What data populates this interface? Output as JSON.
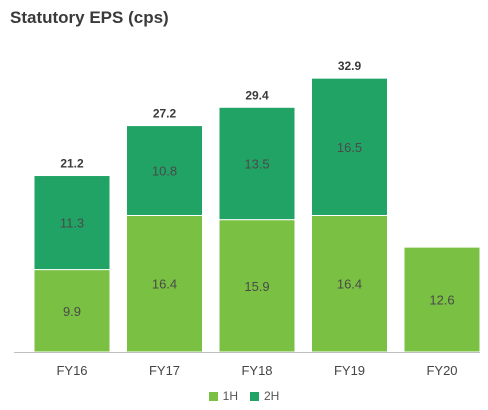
{
  "chart_data": {
    "type": "bar",
    "stacked": true,
    "title": "Statutory EPS (cps)",
    "xlabel": "",
    "ylabel": "",
    "categories": [
      "FY16",
      "FY17",
      "FY18",
      "FY19",
      "FY20"
    ],
    "series": [
      {
        "name": "1H",
        "color": "#7ac143",
        "values": [
          9.9,
          16.4,
          15.9,
          16.4,
          12.6
        ]
      },
      {
        "name": "2H",
        "color": "#21a366",
        "values": [
          11.3,
          10.8,
          13.5,
          16.5,
          null
        ]
      }
    ],
    "totals": [
      "21.2",
      "27.2",
      "29.4",
      "32.9",
      null
    ],
    "ylim": [
      0,
      34.6
    ],
    "grid": false,
    "legend_position": "bottom"
  }
}
